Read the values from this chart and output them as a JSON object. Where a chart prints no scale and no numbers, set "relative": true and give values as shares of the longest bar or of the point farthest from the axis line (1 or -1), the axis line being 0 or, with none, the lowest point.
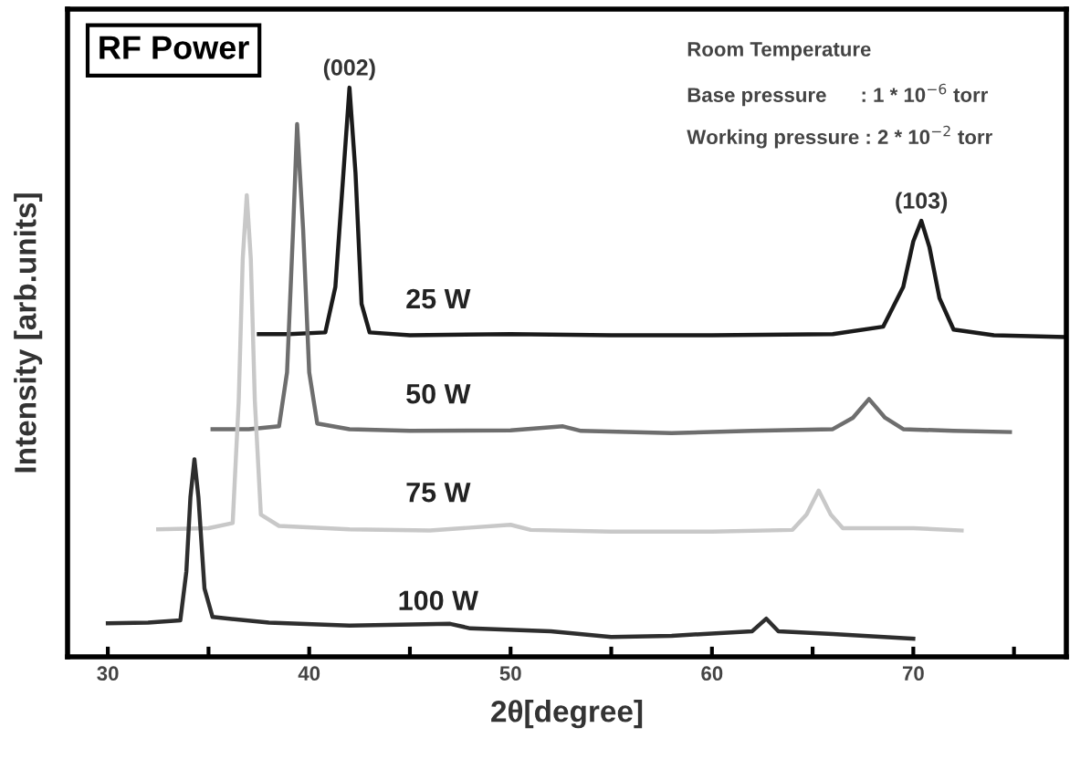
{
  "chart_data": {
    "type": "line",
    "title": "RF Power",
    "xlabel": "2θ[degree]",
    "ylabel": "Intensity [arb.units]",
    "relative": true,
    "xlim": [
      28.0,
      77.6
    ],
    "xticks": [
      30,
      {
        "value": 35,
        "label": null
      },
      40,
      {
        "value": 45,
        "label": null
      },
      50,
      {
        "value": 55,
        "label": null
      },
      60,
      {
        "value": 65,
        "label": null
      },
      70,
      {
        "value": 75,
        "label": null
      }
    ],
    "annotations": [
      {
        "text": "(002)",
        "x": 42.0,
        "y": 1.0
      },
      {
        "text": "(103)",
        "x": 70.4,
        "y": 0.766
      },
      "Room Temperature",
      "Base pressure      : 1 * 10$^{−6}$ torr",
      "Working pressure : 2 * 10$^{−2}$ torr"
    ],
    "series": [
      {
        "name": "25 W",
        "color": "#1a1a1a",
        "x": [
          37.5,
          39,
          40.8,
          41.3,
          41.7,
          42.0,
          42.3,
          42.6,
          43.0,
          45,
          50,
          55,
          60,
          66,
          68.5,
          69.5,
          70.0,
          70.4,
          70.8,
          71.3,
          72,
          74,
          77.5
        ],
        "values": [
          0.567,
          0.567,
          0.57,
          0.65,
          0.85,
          1.0,
          0.85,
          0.62,
          0.57,
          0.565,
          0.567,
          0.565,
          0.565,
          0.567,
          0.58,
          0.65,
          0.73,
          0.766,
          0.72,
          0.63,
          0.575,
          0.565,
          0.562
        ]
      },
      {
        "name": "50 W",
        "color": "#6e6e6e",
        "x": [
          35.2,
          37,
          38.5,
          38.9,
          39.2,
          39.4,
          39.7,
          40.0,
          40.4,
          42,
          45,
          50,
          52.6,
          53.5,
          58,
          62,
          66,
          67.0,
          67.8,
          68.6,
          69.5,
          72,
          74.8
        ],
        "values": [
          0.4,
          0.4,
          0.405,
          0.5,
          0.75,
          0.936,
          0.75,
          0.5,
          0.41,
          0.4,
          0.397,
          0.398,
          0.405,
          0.397,
          0.393,
          0.397,
          0.4,
          0.42,
          0.453,
          0.42,
          0.4,
          0.397,
          0.395
        ]
      },
      {
        "name": "75 W",
        "color": "#c8c8c8",
        "x": [
          32.5,
          35,
          36.2,
          36.5,
          36.7,
          36.9,
          37.1,
          37.3,
          37.6,
          38.5,
          42,
          46,
          50,
          51,
          55,
          60,
          64,
          64.7,
          65.3,
          65.9,
          66.5,
          70,
          72.4
        ],
        "values": [
          0.224,
          0.226,
          0.235,
          0.45,
          0.7,
          0.811,
          0.7,
          0.45,
          0.25,
          0.23,
          0.224,
          0.222,
          0.232,
          0.223,
          0.22,
          0.22,
          0.223,
          0.25,
          0.292,
          0.25,
          0.226,
          0.226,
          0.222
        ]
      },
      {
        "name": "100 W",
        "color": "#2e2e2e",
        "x": [
          30,
          32,
          33.6,
          33.9,
          34.1,
          34.3,
          34.5,
          34.8,
          35.2,
          38,
          42,
          47,
          48,
          52,
          55,
          58,
          62,
          62.7,
          63.3,
          66,
          70
        ],
        "values": [
          0.059,
          0.06,
          0.064,
          0.15,
          0.28,
          0.347,
          0.28,
          0.12,
          0.07,
          0.06,
          0.055,
          0.058,
          0.05,
          0.045,
          0.035,
          0.037,
          0.045,
          0.067,
          0.045,
          0.04,
          0.032
        ]
      }
    ]
  }
}
